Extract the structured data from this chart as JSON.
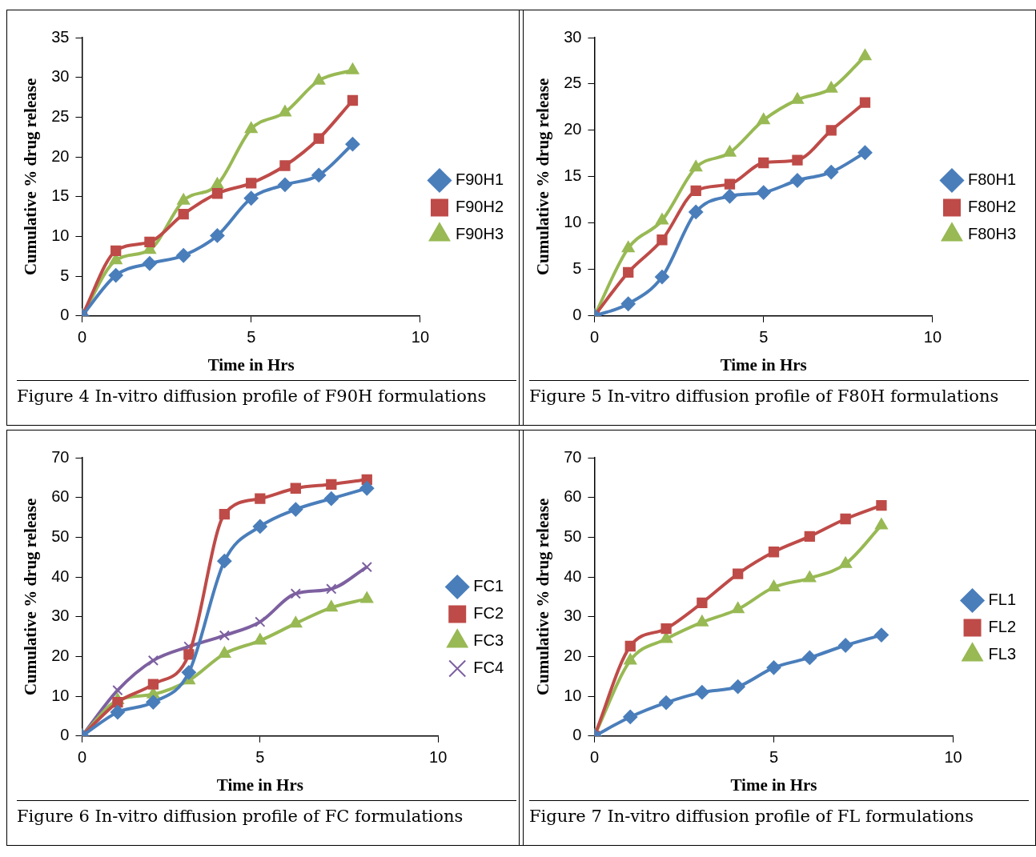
{
  "chart_data": [
    {
      "type": "line",
      "xlabel": "Time in Hrs",
      "ylabel": "Cumulative % drug release",
      "x": [
        0,
        1,
        2,
        3,
        4,
        5,
        6,
        7,
        8
      ],
      "xlim": [
        0,
        10
      ],
      "xticks": [
        0,
        5,
        10
      ],
      "ylim": [
        0,
        35
      ],
      "yticks": [
        0,
        5,
        10,
        15,
        20,
        25,
        30,
        35
      ],
      "grid": false,
      "legend": "right",
      "annotations": [
        "Figure 4 In-vitro diffusion profile of F90H formulations"
      ],
      "series": [
        {
          "name": "F90H1",
          "color": "#4a7ebb",
          "marker": "diamond",
          "values": [
            0,
            5.1,
            6.6,
            7.6,
            10.1,
            14.8,
            16.5,
            17.7,
            21.6
          ]
        },
        {
          "name": "F90H2",
          "color": "#be4b48",
          "marker": "square",
          "values": [
            0,
            8.2,
            9.3,
            12.8,
            15.4,
            16.7,
            18.9,
            22.3,
            27.1
          ]
        },
        {
          "name": "F90H3",
          "color": "#98b954",
          "marker": "triangle",
          "values": [
            0,
            7.0,
            8.3,
            14.5,
            16.5,
            23.5,
            25.6,
            29.6,
            30.9
          ]
        }
      ]
    },
    {
      "type": "line",
      "xlabel": "Time in Hrs",
      "ylabel": "Cumulative % drug release",
      "x": [
        0,
        1,
        2,
        3,
        4,
        5,
        6,
        7,
        8
      ],
      "xlim": [
        0,
        10
      ],
      "xticks": [
        0,
        5,
        10
      ],
      "ylim": [
        0,
        30
      ],
      "yticks": [
        0,
        5,
        10,
        15,
        20,
        25,
        30
      ],
      "grid": false,
      "legend": "right",
      "annotations": [
        "Figure 5 In-vitro diffusion profile of F80H formulations"
      ],
      "series": [
        {
          "name": "F80H1",
          "color": "#4a7ebb",
          "marker": "diamond",
          "values": [
            0,
            1.3,
            4.2,
            11.2,
            12.9,
            13.3,
            14.6,
            15.5,
            17.6
          ]
        },
        {
          "name": "F80H2",
          "color": "#be4b48",
          "marker": "square",
          "values": [
            0,
            4.7,
            8.2,
            13.5,
            14.2,
            16.5,
            16.8,
            20.0,
            23.0
          ]
        },
        {
          "name": "F80H3",
          "color": "#98b954",
          "marker": "triangle",
          "values": [
            0,
            7.3,
            10.3,
            16.0,
            17.6,
            21.1,
            23.3,
            24.5,
            28.0
          ]
        }
      ]
    },
    {
      "type": "line",
      "xlabel": "Time in Hrs",
      "ylabel": "Cumulative % drug release",
      "x": [
        0,
        1,
        2,
        3,
        4,
        5,
        6,
        7,
        8
      ],
      "xlim": [
        0,
        10
      ],
      "xticks": [
        0,
        5,
        10
      ],
      "ylim": [
        0,
        70
      ],
      "yticks": [
        0,
        10,
        20,
        30,
        40,
        50,
        60,
        70
      ],
      "grid": false,
      "legend": "right",
      "annotations": [
        "Figure 6 In-vitro diffusion profile of FC formulations"
      ],
      "series": [
        {
          "name": "FC1",
          "color": "#4a7ebb",
          "marker": "diamond",
          "values": [
            0,
            6,
            8.5,
            16,
            44,
            52.7,
            57,
            59.7,
            62.3
          ]
        },
        {
          "name": "FC2",
          "color": "#be4b48",
          "marker": "square",
          "values": [
            0,
            8.5,
            13,
            20.5,
            55.8,
            59.7,
            62.3,
            63.3,
            64.5
          ]
        },
        {
          "name": "FC3",
          "color": "#98b954",
          "marker": "triangle",
          "values": [
            0,
            9,
            10.5,
            14,
            20.7,
            24,
            28.3,
            32.3,
            34.5
          ]
        },
        {
          "name": "FC4",
          "color": "#7d60a0",
          "marker": "cross",
          "values": [
            0,
            11.5,
            19,
            22.5,
            25.3,
            28.7,
            35.8,
            37,
            42.5
          ]
        }
      ]
    },
    {
      "type": "line",
      "xlabel": "Time in Hrs",
      "ylabel": "Cumulative % drug release",
      "x": [
        0,
        1,
        2,
        3,
        4,
        5,
        6,
        7,
        8
      ],
      "xlim": [
        0,
        10
      ],
      "xticks": [
        0,
        5,
        10
      ],
      "ylim": [
        0,
        70
      ],
      "yticks": [
        0,
        10,
        20,
        30,
        40,
        50,
        60,
        70
      ],
      "grid": false,
      "legend": "right",
      "annotations": [
        "Figure 7 In-vitro diffusion profile of FL formulations"
      ],
      "series": [
        {
          "name": "FL1",
          "color": "#4a7ebb",
          "marker": "diamond",
          "values": [
            0,
            4.8,
            8.4,
            11,
            12.4,
            17.2,
            19.7,
            22.8,
            25.4
          ]
        },
        {
          "name": "FL2",
          "color": "#be4b48",
          "marker": "square",
          "values": [
            0,
            22.6,
            27,
            33.5,
            40.8,
            46.3,
            50.2,
            54.6,
            58
          ]
        },
        {
          "name": "FL3",
          "color": "#98b954",
          "marker": "triangle",
          "values": [
            0,
            19,
            24.4,
            28.6,
            31.9,
            37.4,
            39.7,
            43.3,
            53
          ]
        }
      ]
    }
  ]
}
